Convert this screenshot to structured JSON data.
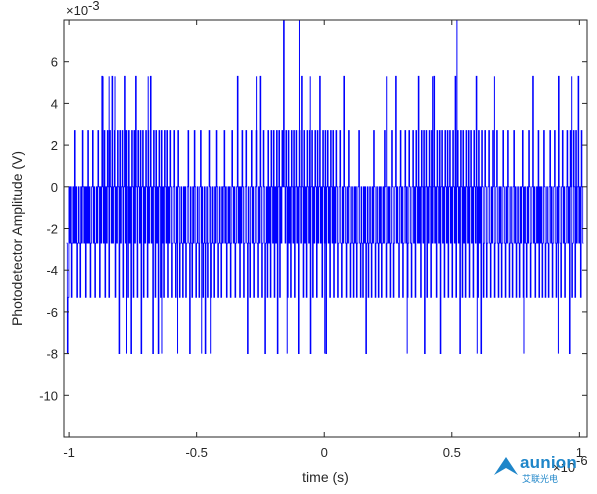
{
  "chart_data": {
    "type": "line",
    "title": "",
    "xlabel": "time (s)",
    "ylabel": "Photodetector Amplitude (V)",
    "x_multiplier_label": "×10",
    "x_multiplier_exponent": "-6",
    "y_multiplier_label": "×10",
    "y_multiplier_exponent": "-3",
    "xlim": [
      -1.02,
      1.03
    ],
    "ylim": [
      -12,
      8
    ],
    "x_ticks": [
      {
        "value": -1,
        "label": "-1"
      },
      {
        "value": -0.5,
        "label": "-0.5"
      },
      {
        "value": 0,
        "label": "0"
      },
      {
        "value": 0.5,
        "label": "0.5"
      },
      {
        "value": 1,
        "label": "1"
      }
    ],
    "y_ticks": [
      {
        "value": -10,
        "label": "-10"
      },
      {
        "value": -8,
        "label": "-8"
      },
      {
        "value": -6,
        "label": "-6"
      },
      {
        "value": -4,
        "label": "-4"
      },
      {
        "value": -2,
        "label": "-2"
      },
      {
        "value": 0,
        "label": "0"
      },
      {
        "value": 2,
        "label": "2"
      },
      {
        "value": 4,
        "label": "4"
      },
      {
        "value": 6,
        "label": "6"
      }
    ],
    "grid": false,
    "series_color": "#0000ff",
    "levels": [
      -8,
      -5.3,
      -2.7,
      0,
      2.7,
      5.3,
      8
    ],
    "series": [
      {
        "sample_spacing": 0.00307,
        "sampled_levels": [
          -2.7,
          -8,
          -5.3,
          0,
          -2.7,
          0,
          -5.3,
          -2.7,
          0,
          -2.7,
          2.7,
          -2.7,
          0,
          -5.3,
          -2.7,
          0,
          -2.7,
          -5.3,
          0,
          -2.7,
          2.7,
          0,
          -2.7,
          0,
          -5.3,
          0,
          -2.7,
          2.7,
          -2.7,
          0,
          -5.3,
          -2.7,
          0,
          2.7,
          -2.7,
          0,
          -5.3,
          -2.7,
          0,
          -2.7,
          2.7,
          0,
          -5.3,
          0,
          -2.7,
          5.3,
          0,
          -2.7,
          2.7,
          -5.3,
          0,
          -2.7,
          2.7,
          0,
          -5.3,
          2.7,
          0,
          -2.7,
          5.3,
          -2.7,
          0,
          2.7,
          -5.3,
          0,
          -2.7,
          2.7,
          0,
          -8,
          2.7,
          -2.7,
          0,
          2.7,
          -5.3,
          0,
          5.3,
          -2.7,
          2.7,
          0,
          -5.3,
          2.7,
          -2.7,
          0,
          -8,
          2.7,
          0,
          -5.3,
          2.7,
          -2.7,
          5.3,
          0,
          -5.3,
          2.7,
          0,
          -2.7,
          2.7,
          -8,
          0,
          2.7,
          -5.3,
          0,
          -2.7,
          2.7,
          0,
          -5.3,
          2.7,
          -2.7,
          0,
          5.3,
          -2.7,
          0,
          -8,
          2.7,
          0,
          -5.3,
          2.7,
          -2.7,
          0,
          -8,
          2.7,
          0,
          -5.3,
          2.7,
          -2.7,
          0,
          -5.3,
          2.7,
          0,
          -2.7,
          2.7,
          -5.3,
          0,
          -2.7,
          2.7,
          0,
          -5.3,
          -2.7,
          0,
          2.7,
          -2.7,
          -5.3,
          0,
          -2.7,
          2.7,
          0,
          -5.3,
          -2.7,
          0,
          -2.7,
          -5.3,
          0,
          -2.7,
          0,
          -5.3,
          -2.7,
          0,
          2.7,
          -2.7,
          -8,
          0,
          -2.7,
          -5.3,
          0,
          -2.7,
          2.7,
          0,
          -5.3,
          -2.7,
          0,
          -2.7,
          -5.3,
          0,
          2.7,
          -2.7,
          0,
          -5.3,
          -2.7,
          0,
          -8,
          -2.7,
          0,
          -5.3,
          -2.7,
          2.7,
          0,
          -5.3,
          -2.7,
          0,
          -2.7,
          -5.3,
          0,
          -2.7,
          2.7,
          0,
          -5.3,
          -2.7,
          0,
          -2.7,
          -5.3,
          0,
          -2.7,
          0,
          2.7,
          -2.7,
          0,
          -5.3,
          -2.7,
          0,
          -2.7,
          0,
          -5.3,
          -2.7,
          2.7,
          0,
          -2.7,
          0,
          -5.3,
          -2.7,
          0,
          5.3,
          -2.7,
          0,
          -5.3,
          0,
          -2.7,
          2.7,
          0,
          -5.3,
          -2.7,
          0,
          2.7,
          -2.7,
          -8,
          0,
          -2.7,
          -5.3,
          0,
          2.7,
          -2.7,
          0,
          -5.3,
          -2.7,
          0,
          2.7,
          -2.7,
          -5.3,
          0,
          -2.7,
          5.3,
          0,
          -5.3,
          -2.7,
          2.7,
          0,
          -8,
          -2.7,
          0,
          -5.3,
          2.7,
          -2.7,
          0,
          -5.3,
          2.7,
          0,
          -2.7,
          2.7,
          -5.3,
          0,
          -2.7,
          2.7,
          -8,
          0,
          2.7,
          -5.3,
          0,
          -2.7,
          2.7,
          0,
          8,
          0,
          -2.7,
          2.7,
          0,
          -5.3,
          2.7,
          -2.7,
          0,
          -5.3,
          2.7,
          0,
          -2.7,
          2.7,
          -5.3,
          0,
          2.7,
          -2.7,
          0,
          -8,
          2.7,
          0,
          -2.7,
          5.3,
          0,
          -5.3,
          2.7,
          -2.7,
          0,
          -5.3,
          2.7,
          0,
          -2.7,
          2.7,
          -8,
          0,
          2.7,
          -5.3,
          0,
          -2.7,
          2.7,
          0,
          -5.3,
          2.7,
          -2.7,
          0,
          5.3,
          -2.7,
          0,
          -5.3,
          2.7,
          0,
          -2.7,
          2.7,
          -8,
          0,
          2.7,
          -2.7,
          0,
          -5.3,
          2.7,
          0,
          -2.7,
          2.7,
          -5.3,
          0,
          -2.7,
          2.7,
          0,
          -5.3,
          -2.7,
          0,
          2.7,
          -2.7,
          -5.3,
          0,
          -2.7,
          5.3,
          0,
          -2.7,
          -5.3,
          0,
          -2.7,
          2.7,
          0,
          -5.3,
          -2.7,
          0,
          -2.7,
          -5.3,
          0,
          -2.7,
          0,
          -5.3,
          -2.7,
          0,
          2.7,
          -2.7,
          -5.3,
          0,
          -2.7,
          -5.3,
          0,
          -2.7,
          0,
          -8,
          -2.7,
          0,
          -5.3,
          -2.7,
          0,
          -2.7,
          -5.3,
          0,
          -2.7,
          2.7,
          0,
          -5.3,
          -2.7,
          0,
          -2.7,
          -5.3,
          0,
          -2.7,
          0,
          -5.3,
          -2.7,
          0,
          -2.7,
          2.7,
          0,
          -5.3,
          -2.7,
          0,
          -2.7,
          0,
          -5.3,
          -2.7,
          2.7,
          0,
          -5.3,
          -2.7,
          0,
          5.3,
          -2.7,
          0,
          -2.7,
          -5.3,
          0,
          2.7,
          -2.7,
          0,
          -5.3,
          -2.7,
          0,
          2.7,
          -2.7,
          0,
          -5.3,
          -2.7,
          2.7,
          0,
          -2.7,
          -5.3,
          0,
          2.7,
          -2.7,
          0,
          -5.3,
          2.7,
          0,
          -2.7,
          5.3,
          -2.7,
          0,
          -5.3,
          2.7,
          0,
          -2.7,
          2.7,
          -8,
          0,
          2.7,
          -5.3,
          0,
          -2.7,
          2.7,
          0,
          -5.3,
          2.7,
          -2.7,
          0,
          5.3,
          -2.7,
          0,
          -5.3,
          2.7,
          0,
          -2.7,
          2.7,
          -8,
          0,
          2.7,
          -2.7,
          0,
          -5.3,
          2.7,
          0,
          -2.7,
          2.7,
          -5.3,
          0,
          2.7,
          -2.7,
          0,
          -5.3,
          2.7,
          0,
          -2.7,
          5.3,
          -5.3,
          0,
          2.7,
          -2.7,
          0,
          -8,
          2.7,
          0,
          -5.3,
          2.7,
          -2.7,
          0,
          -5.3,
          2.7,
          0,
          -2.7,
          2.7,
          -5.3,
          0,
          2.7,
          -2.7,
          0,
          -5.3,
          2.7,
          0,
          -2.7,
          5.3,
          0,
          -5.3,
          2.7,
          -2.7,
          0,
          -8,
          2.7,
          0,
          -5.3,
          -2.7,
          2.7,
          0,
          -5.3,
          -2.7,
          0,
          2.7,
          -2.7,
          -5.3,
          0,
          -2.7,
          2.7,
          0,
          -5.3,
          -2.7,
          0,
          2.7,
          -2.7,
          -5.3,
          0,
          -2.7,
          0,
          -5.3,
          -2.7,
          2.7,
          0,
          -2.7,
          -5.3,
          0,
          -2.7,
          2.7,
          0,
          -5.3,
          -2.7,
          0,
          -2.7,
          -5.3,
          0,
          2.7,
          -2.7,
          0,
          -5.3,
          -2.7,
          0,
          -2.7,
          -5.3,
          0,
          -2.7,
          0,
          2.7,
          -5.3,
          -2.7,
          0,
          -2.7,
          -5.3,
          0,
          -2.7,
          2.7,
          0,
          -5.3,
          -2.7,
          0,
          5.3,
          -2.7,
          0,
          -5.3,
          -2.7,
          0,
          -2.7,
          2.7,
          -5.3,
          0,
          -2.7,
          0,
          -5.3,
          -2.7,
          2.7,
          0,
          -5.3,
          -2.7,
          0,
          -2.7,
          -5.3,
          0,
          2.7,
          -2.7,
          0,
          -5.3,
          -2.7,
          0,
          2.7,
          -2.7,
          -5.3,
          0,
          -2.7,
          5.3,
          0,
          -2.7,
          -5.3,
          0,
          2.7,
          -2.7,
          0,
          -5.3,
          -2.7,
          0,
          2.7,
          -2.7,
          0,
          -8,
          2.7,
          0,
          -5.3,
          -2.7,
          2.7,
          0,
          -5.3,
          2.7,
          -2.7,
          0,
          5.3,
          -2.7,
          0,
          -5.3,
          2.7,
          0,
          -2.7
        ]
      }
    ],
    "spikes": [
      {
        "x": -0.867,
        "y": 5.3
      },
      {
        "x": -0.843,
        "y": 5.3
      },
      {
        "x": -0.82,
        "y": 5.3
      },
      {
        "x": -0.775,
        "y": -8
      },
      {
        "x": -0.69,
        "y": 5.3
      },
      {
        "x": -0.636,
        "y": -8
      },
      {
        "x": -0.575,
        "y": -8
      },
      {
        "x": -0.48,
        "y": -8
      },
      {
        "x": -0.445,
        "y": -8
      },
      {
        "x": -0.265,
        "y": 5.3
      },
      {
        "x": -0.145,
        "y": -8
      },
      {
        "x": -0.097,
        "y": 8
      },
      {
        "x": -0.055,
        "y": 5.3
      },
      {
        "x": 0.002,
        "y": -8
      },
      {
        "x": 0.245,
        "y": 5.3
      },
      {
        "x": 0.325,
        "y": -8
      },
      {
        "x": 0.425,
        "y": 5.3
      },
      {
        "x": 0.52,
        "y": 8
      },
      {
        "x": 0.6,
        "y": -8
      },
      {
        "x": 0.667,
        "y": 5.3
      },
      {
        "x": 0.783,
        "y": -8
      },
      {
        "x": 0.918,
        "y": -8
      },
      {
        "x": 0.97,
        "y": 5.3
      }
    ]
  },
  "watermark": {
    "brand": "aunion",
    "subtitle": "艾联光电"
  }
}
